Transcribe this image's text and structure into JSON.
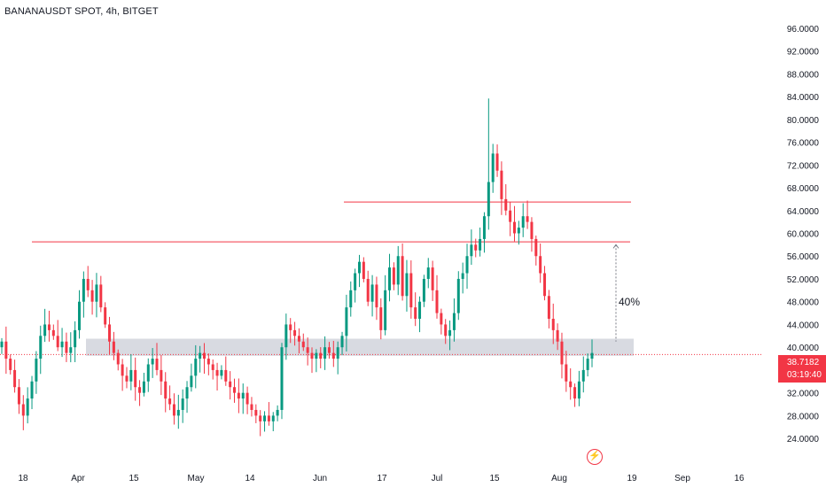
{
  "title": "BANANAUSDT SPOT, 4h, BITGET",
  "chart_data": {
    "type": "candlestick",
    "symbol": "BANANAUSDT SPOT",
    "interval": "4h",
    "exchange": "BITGET",
    "ylim": [
      22,
      98
    ],
    "y_ticks": [
      "96.0000",
      "92.0000",
      "88.0000",
      "84.0000",
      "80.0000",
      "76.0000",
      "72.0000",
      "68.0000",
      "64.0000",
      "60.0000",
      "56.0000",
      "52.0000",
      "48.0000",
      "44.0000",
      "40.0000",
      "36.0000",
      "32.0000",
      "28.0000",
      "24.0000"
    ],
    "x_ticks": [
      "18",
      "Apr",
      "15",
      "May",
      "14",
      "Jun",
      "17",
      "Jul",
      "15",
      "Aug",
      "19",
      "Sep",
      "16"
    ],
    "series": [
      {
        "values": [
          41,
          38,
          36,
          33,
          30,
          28,
          31,
          34,
          38,
          42,
          44,
          43,
          42,
          40,
          41,
          39,
          40,
          43,
          48,
          52,
          50,
          48,
          51,
          47,
          44,
          41,
          39,
          37,
          35,
          34,
          36,
          33,
          32,
          34,
          37,
          38,
          36,
          34,
          31,
          30,
          28,
          29,
          31,
          33,
          35,
          38,
          39,
          38,
          37,
          36,
          35,
          36,
          34,
          33,
          32,
          31,
          32,
          30,
          29,
          28,
          27,
          28,
          27,
          28,
          29,
          40,
          44,
          43,
          42,
          41,
          40,
          39,
          38,
          39,
          38,
          40,
          39,
          38,
          40,
          42,
          47,
          50,
          53,
          55,
          52,
          48,
          51,
          47,
          43,
          50,
          54,
          51,
          56,
          49,
          53,
          47,
          45,
          48,
          52,
          54,
          50,
          46,
          44,
          42,
          43,
          46,
          52,
          53,
          56,
          58,
          57,
          59,
          63,
          69,
          74,
          71,
          66,
          64,
          62,
          60,
          61,
          63,
          62,
          59,
          56,
          53,
          49,
          45,
          43,
          41,
          37,
          34,
          33,
          31,
          34,
          36,
          38,
          39
        ]
      }
    ]
  },
  "price_badge": {
    "price": "38.7182",
    "countdown": "03:19:40"
  },
  "annotation": {
    "percent_label": "40%",
    "support_zone": [
      38.5,
      41.5
    ],
    "resistance_lines": [
      58.5,
      65.5
    ],
    "current_price": 38.7182
  },
  "colors": {
    "up": "#089981",
    "down": "#f23645",
    "wick": "#5d606b",
    "grid": "#f0f3fa",
    "axis_text": "#131722",
    "zone": "#d1d4dc",
    "resistance": "#f23645"
  }
}
